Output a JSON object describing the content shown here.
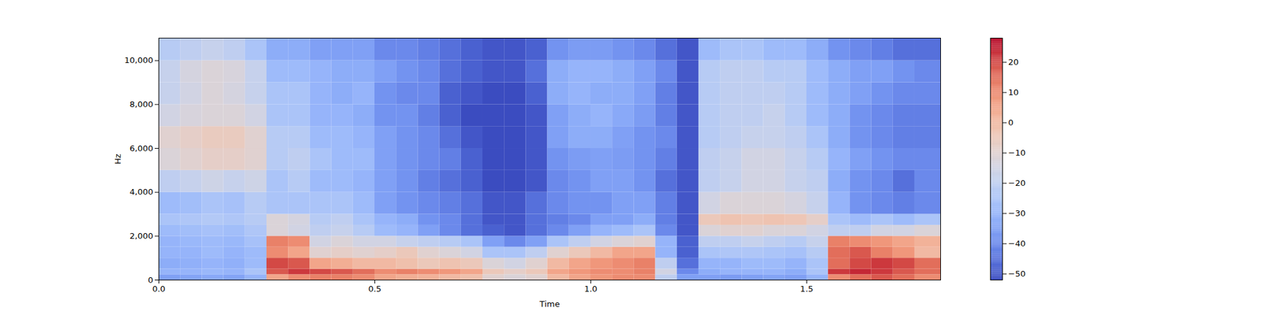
{
  "chart_data": {
    "type": "heatmap",
    "x_label": "Time",
    "y_label": "Hz",
    "xlim": [
      0,
      1.81
    ],
    "xticks": [
      0,
      0.5,
      1,
      1.5
    ],
    "ylim": [
      0,
      11025
    ],
    "yticks": [
      0,
      2000,
      4000,
      6000,
      8000,
      10000
    ],
    "time_bins": [
      0,
      0.05,
      0.1,
      0.15,
      0.2,
      0.25,
      0.3,
      0.35,
      0.4,
      0.45,
      0.5,
      0.55,
      0.6,
      0.65,
      0.7,
      0.75,
      0.8,
      0.85,
      0.9,
      0.95,
      1,
      1.05,
      1.1,
      1.15,
      1.2,
      1.25,
      1.3,
      1.35,
      1.4,
      1.45,
      1.5,
      1.55,
      1.6,
      1.65,
      1.7,
      1.75,
      1.81
    ],
    "freq_bins": [
      0,
      250,
      500,
      1000,
      1500,
      2000,
      2500,
      3000,
      4000,
      5000,
      6000,
      7000,
      8000,
      9000,
      10000,
      11025
    ],
    "cells": [
      [
        -35,
        -34,
        -33,
        -34,
        -30,
        5,
        10,
        12,
        12,
        10,
        5,
        3,
        2,
        0,
        -2,
        -10,
        -12,
        -10,
        0,
        5,
        8,
        10,
        10,
        -20,
        -35,
        -35,
        -36,
        -35,
        -34,
        -35,
        -30,
        10,
        15,
        18,
        15,
        10
      ],
      [
        -30,
        -30,
        -29,
        -30,
        -25,
        18,
        22,
        20,
        18,
        15,
        10,
        12,
        10,
        8,
        5,
        -5,
        -8,
        -5,
        5,
        8,
        10,
        10,
        12,
        -15,
        -40,
        -32,
        -30,
        -30,
        -30,
        -32,
        -25,
        22,
        24,
        22,
        18,
        15
      ],
      [
        -32,
        -31,
        -30,
        -31,
        -28,
        20,
        18,
        5,
        3,
        0,
        0,
        -2,
        -5,
        -3,
        -5,
        -12,
        -15,
        -10,
        0,
        5,
        8,
        10,
        12,
        -20,
        -45,
        -30,
        -30,
        -28,
        -28,
        -30,
        -25,
        15,
        20,
        22,
        20,
        15
      ],
      [
        -30,
        -30,
        -28,
        -30,
        -28,
        10,
        5,
        -10,
        -8,
        -10,
        -8,
        -5,
        -10,
        -12,
        -15,
        -25,
        -25,
        -20,
        -10,
        -5,
        0,
        5,
        5,
        -30,
        -48,
        -25,
        -24,
        -24,
        -25,
        -26,
        -22,
        15,
        18,
        12,
        8,
        0
      ],
      [
        -30,
        -29,
        -28,
        -29,
        -26,
        12,
        10,
        -15,
        -12,
        -15,
        -15,
        -18,
        -20,
        -22,
        -25,
        -35,
        -40,
        -35,
        -25,
        -20,
        -15,
        -12,
        -10,
        -30,
        -48,
        -20,
        -20,
        -18,
        -20,
        -22,
        -18,
        12,
        10,
        8,
        5,
        2
      ],
      [
        -28,
        -27,
        -26,
        -27,
        -24,
        -12,
        -15,
        -20,
        -18,
        -22,
        -28,
        -30,
        -35,
        -40,
        -45,
        -48,
        -50,
        -45,
        -40,
        -35,
        -30,
        -28,
        -25,
        -40,
        -50,
        -12,
        -10,
        -10,
        -12,
        -12,
        -15,
        -20,
        -20,
        -15,
        -15,
        -12
      ],
      [
        -25,
        -24,
        -23,
        -24,
        -22,
        -12,
        -14,
        -22,
        -20,
        -25,
        -30,
        -32,
        -38,
        -40,
        -45,
        -50,
        -50,
        -45,
        -42,
        -40,
        -35,
        -35,
        -32,
        -42,
        -50,
        -5,
        -3,
        -4,
        -3,
        -4,
        -8,
        -25,
        -28,
        -25,
        -28,
        -25
      ],
      [
        -28,
        -27,
        -25,
        -26,
        -22,
        -25,
        -25,
        -25,
        -25,
        -28,
        -35,
        -38,
        -40,
        -42,
        -45,
        -50,
        -50,
        -45,
        -40,
        -38,
        -38,
        -35,
        -35,
        -42,
        -50,
        -15,
        -12,
        -12,
        -12,
        -14,
        -18,
        -30,
        -38,
        -40,
        -42,
        -40
      ],
      [
        -20,
        -18,
        -16,
        -18,
        -16,
        -25,
        -22,
        -28,
        -28,
        -30,
        -35,
        -38,
        -42,
        -45,
        -48,
        -52,
        -52,
        -50,
        -40,
        -38,
        -35,
        -35,
        -38,
        -45,
        -50,
        -20,
        -18,
        -15,
        -15,
        -18,
        -20,
        -32,
        -38,
        -40,
        -45,
        -40
      ],
      [
        -12,
        -10,
        -8,
        -8,
        -10,
        -22,
        -20,
        -25,
        -28,
        -28,
        -35,
        -38,
        -40,
        -42,
        -48,
        -52,
        -52,
        -50,
        -38,
        -36,
        -35,
        -36,
        -38,
        -42,
        -50,
        -20,
        -18,
        -15,
        -15,
        -18,
        -22,
        -30,
        -35,
        -38,
        -40,
        -40
      ],
      [
        -10,
        -8,
        -6,
        -6,
        -10,
        -22,
        -22,
        -28,
        -28,
        -30,
        -35,
        -38,
        -40,
        -45,
        -50,
        -52,
        -52,
        -50,
        -35,
        -32,
        -32,
        -35,
        -38,
        -40,
        -50,
        -22,
        -20,
        -18,
        -18,
        -20,
        -25,
        -32,
        -38,
        -40,
        -42,
        -42
      ],
      [
        -15,
        -13,
        -12,
        -12,
        -15,
        -25,
        -25,
        -30,
        -30,
        -32,
        -38,
        -38,
        -42,
        -48,
        -52,
        -52,
        -52,
        -50,
        -35,
        -32,
        -30,
        -33,
        -36,
        -42,
        -50,
        -22,
        -20,
        -20,
        -18,
        -22,
        -28,
        -32,
        -38,
        -40,
        -42,
        -42
      ],
      [
        -18,
        -15,
        -12,
        -14,
        -18,
        -25,
        -25,
        -30,
        -32,
        -30,
        -38,
        -40,
        -40,
        -48,
        -50,
        -52,
        -52,
        -48,
        -32,
        -30,
        -32,
        -32,
        -35,
        -42,
        -50,
        -22,
        -20,
        -20,
        -20,
        -22,
        -28,
        -32,
        -35,
        -38,
        -40,
        -40
      ],
      [
        -18,
        -14,
        -12,
        -13,
        -18,
        -28,
        -28,
        -30,
        -32,
        -32,
        -35,
        -38,
        -40,
        -45,
        -48,
        -50,
        -50,
        -45,
        -32,
        -30,
        -30,
        -32,
        -35,
        -40,
        -50,
        -22,
        -20,
        -20,
        -22,
        -22,
        -28,
        -32,
        -35,
        -35,
        -38,
        -40
      ],
      [
        -22,
        -20,
        -18,
        -20,
        -25,
        -32,
        -32,
        -35,
        -35,
        -35,
        -40,
        -40,
        -42,
        -45,
        -48,
        -50,
        -50,
        -48,
        -38,
        -36,
        -36,
        -38,
        -40,
        -45,
        -50,
        -28,
        -25,
        -25,
        -28,
        -28,
        -32,
        -38,
        -40,
        -42,
        -45,
        -45
      ]
    ],
    "colorbar": {
      "range": [
        -52,
        28
      ],
      "ticks": [
        20,
        10,
        0,
        -10,
        -20,
        -30,
        -40,
        -50
      ]
    }
  }
}
